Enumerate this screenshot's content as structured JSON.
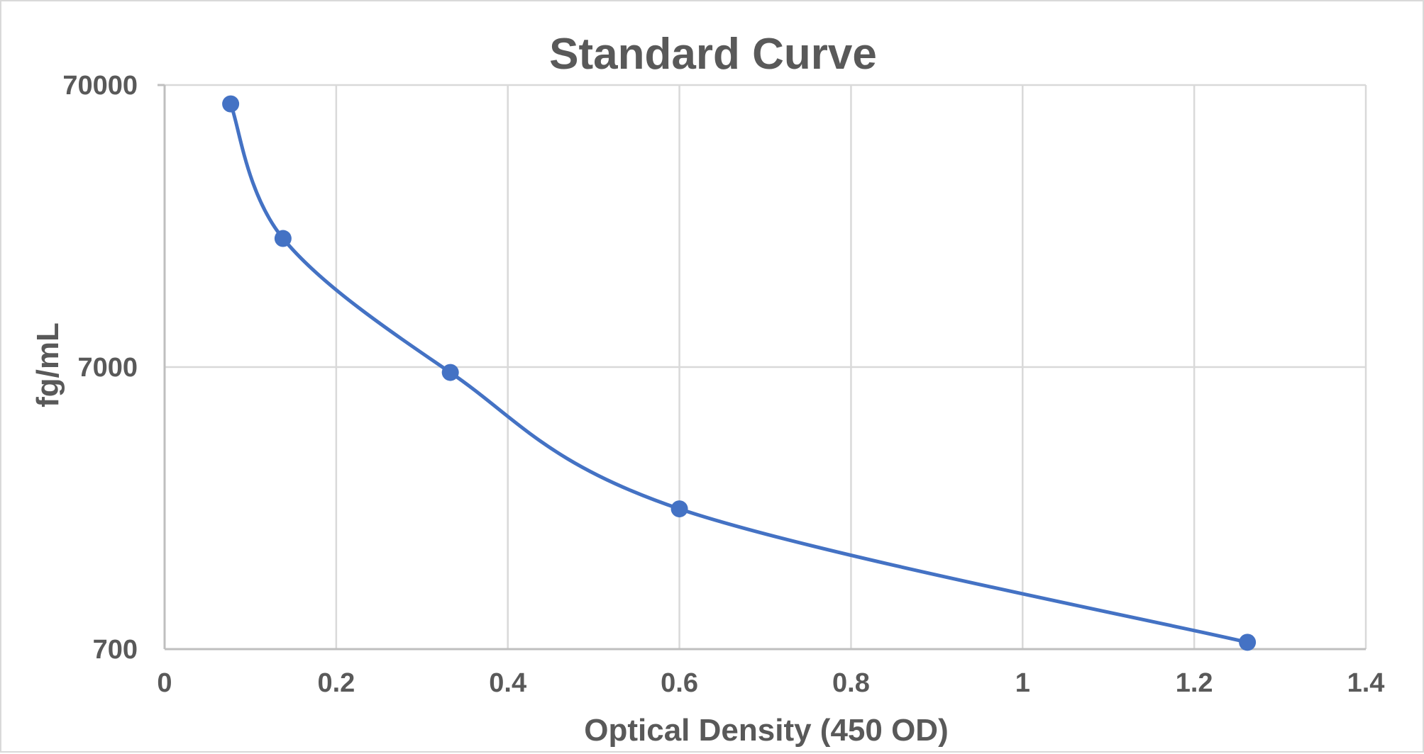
{
  "chart_data": {
    "type": "scatter",
    "title": "Standard Curve",
    "xlabel": "Optical Density (450 OD)",
    "ylabel": "fg/mL",
    "xlim": [
      0,
      1.4
    ],
    "ylim": [
      700,
      70000
    ],
    "yscale": "log",
    "grid": true,
    "smooth_line": true,
    "x_ticks": [
      "0",
      "0.2",
      "0.4",
      "0.6",
      "0.8",
      "1",
      "1.2",
      "1.4"
    ],
    "y_ticks": [
      "70000",
      "7000",
      "700"
    ],
    "series": [
      {
        "color": "#4472c4",
        "x": [
          0.077,
          0.138,
          0.333,
          0.6,
          1.262
        ],
        "y": [
          60000,
          20000,
          6700,
          2200,
          740
        ]
      }
    ]
  }
}
